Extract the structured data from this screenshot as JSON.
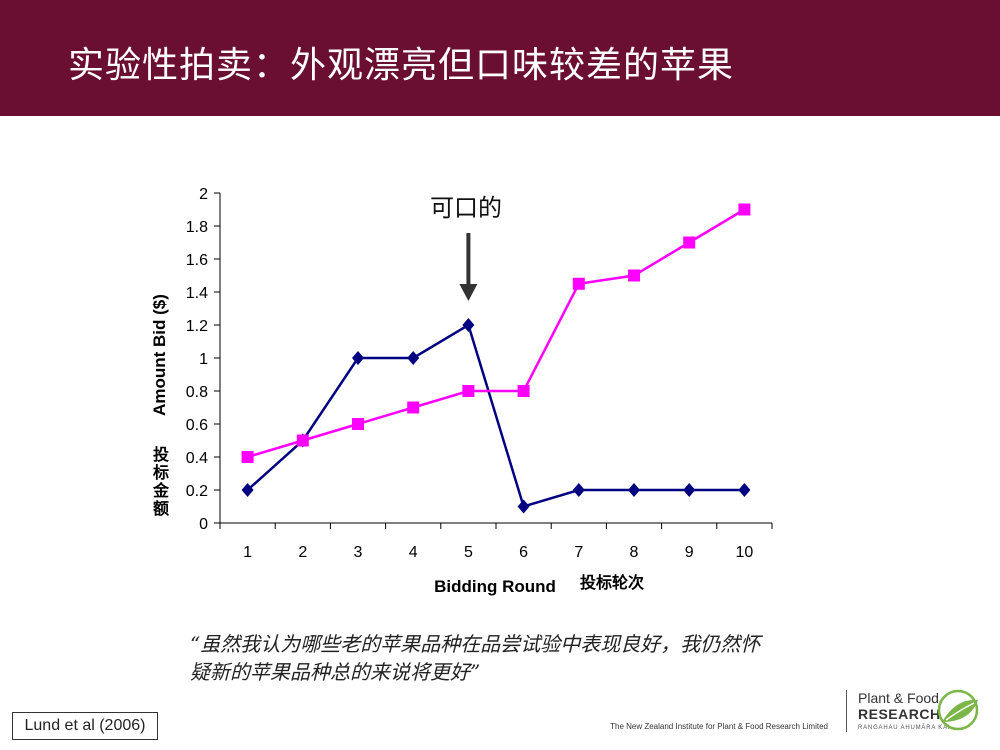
{
  "slide": {
    "title": "实验性拍卖：外观漂亮但口味较差的苹果",
    "annotation": "可口的",
    "quote_line1": "“虽然我认为哪些老的苹果品种在品尝试验中表现良好，我仍然怀",
    "quote_line2": "疑新的苹果品种总的来说将更好”",
    "citation": "Lund et al (2006)",
    "institute": "The New Zealand Institute for Plant & Food Research Limited",
    "logo": {
      "line1": "Plant & Food",
      "line2": "RESEARCH",
      "line3": "RANGAHAU AHUMĀRA KAI"
    }
  },
  "chart_data": {
    "type": "line",
    "x": [
      1,
      2,
      3,
      4,
      5,
      6,
      7,
      8,
      9,
      10
    ],
    "categories": [
      "1",
      "2",
      "3",
      "4",
      "5",
      "6",
      "7",
      "8",
      "9",
      "10"
    ],
    "series": [
      {
        "values": [
          0.2,
          0.5,
          1.0,
          1.0,
          1.2,
          0.1,
          0.2,
          0.2,
          0.2,
          0.2
        ],
        "color": "#000080",
        "marker": "diamond"
      },
      {
        "values": [
          0.4,
          0.5,
          0.6,
          0.7,
          0.8,
          0.8,
          1.45,
          1.5,
          1.7,
          1.9
        ],
        "color": "#ff00ff",
        "marker": "square"
      }
    ],
    "xlabel": "Bidding Round",
    "xlabel_cn": "投标轮次",
    "ylabel": "Amount Bid ($)",
    "ylabel_cn": "投标金额",
    "ylim": [
      0,
      2
    ],
    "yticks": [
      "0",
      "0.2",
      "0.4",
      "0.6",
      "0.8",
      "1",
      "1.2",
      "1.4",
      "1.6",
      "1.8",
      "2"
    ],
    "annotation_round": 5,
    "grid": false,
    "legend": "none"
  }
}
